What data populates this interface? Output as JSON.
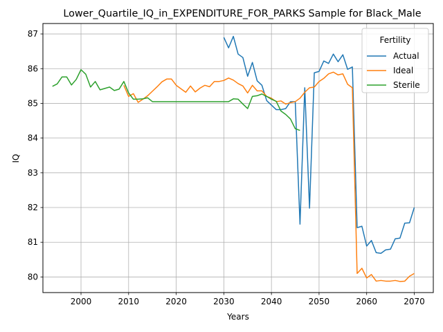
{
  "chart_data": {
    "type": "line",
    "title": "Lower_Quartile_IQ_in_EXPENDITURE_FOR_PARKS Sample for Black_Male",
    "xlabel": "Years",
    "ylabel": "IQ",
    "xlim": [
      1992,
      2074
    ],
    "ylim": [
      79.55,
      87.3
    ],
    "x_ticks": [
      2000,
      2010,
      2020,
      2030,
      2040,
      2050,
      2060,
      2070
    ],
    "y_ticks": [
      80,
      81,
      82,
      83,
      84,
      85,
      86,
      87
    ],
    "grid": true,
    "legend": {
      "title": "Fertility",
      "position": "top-right"
    },
    "series": [
      {
        "name": "Actual",
        "color": "#1f77b4",
        "x": [
          2030,
          2031,
          2032,
          2033,
          2034,
          2035,
          2036,
          2037,
          2038,
          2039,
          2040,
          2041,
          2042,
          2043,
          2044,
          2045,
          2046,
          2047,
          2048,
          2049,
          2050,
          2051,
          2052,
          2053,
          2054,
          2055,
          2056,
          2057,
          2058,
          2059,
          2060,
          2061,
          2062,
          2063,
          2064,
          2065,
          2066,
          2067,
          2068,
          2069,
          2070
        ],
        "values": [
          86.9,
          86.6,
          86.93,
          86.42,
          86.32,
          85.78,
          86.18,
          85.65,
          85.52,
          85.08,
          84.95,
          84.82,
          84.82,
          84.85,
          85.05,
          85.05,
          81.52,
          85.45,
          81.98,
          85.88,
          85.92,
          86.22,
          86.15,
          86.42,
          86.2,
          86.4,
          85.98,
          86.05,
          81.42,
          81.46,
          80.89,
          81.05,
          80.7,
          80.68,
          80.78,
          80.8,
          81.1,
          81.12,
          81.55,
          81.56,
          82.0
        ]
      },
      {
        "name": "Ideal",
        "color": "#ff7f0e",
        "x": [
          2009,
          2010,
          2011,
          2012,
          2013,
          2014,
          2015,
          2016,
          2017,
          2018,
          2019,
          2020,
          2021,
          2022,
          2023,
          2024,
          2025,
          2026,
          2027,
          2028,
          2029,
          2030,
          2031,
          2032,
          2033,
          2034,
          2035,
          2036,
          2037,
          2038,
          2039,
          2040,
          2041,
          2042,
          2043,
          2044,
          2045,
          2046,
          2047,
          2048,
          2049,
          2050,
          2051,
          2052,
          2053,
          2054,
          2055,
          2056,
          2057,
          2058,
          2059,
          2060,
          2061,
          2062,
          2063,
          2064,
          2065,
          2066,
          2067,
          2068,
          2069,
          2070
        ],
        "values": [
          85.52,
          85.2,
          85.28,
          85.03,
          85.12,
          85.22,
          85.35,
          85.48,
          85.62,
          85.7,
          85.7,
          85.52,
          85.42,
          85.32,
          85.5,
          85.33,
          85.44,
          85.52,
          85.48,
          85.63,
          85.63,
          85.66,
          85.73,
          85.67,
          85.57,
          85.5,
          85.3,
          85.52,
          85.36,
          85.36,
          85.2,
          85.15,
          85.05,
          85.07,
          84.98,
          85.02,
          85.05,
          85.15,
          85.32,
          85.45,
          85.47,
          85.63,
          85.72,
          85.85,
          85.9,
          85.82,
          85.85,
          85.55,
          85.45,
          80.1,
          80.25,
          79.97,
          80.07,
          79.88,
          79.9,
          79.88,
          79.88,
          79.9,
          79.87,
          79.88,
          80.02,
          80.1
        ]
      },
      {
        "name": "Sterile",
        "color": "#2ca02c",
        "x": [
          1994,
          1995,
          1996,
          1997,
          1998,
          1999,
          2000,
          2001,
          2002,
          2003,
          2004,
          2005,
          2006,
          2007,
          2008,
          2009,
          2010,
          2011,
          2012,
          2013,
          2014,
          2015,
          2016,
          2017,
          2018,
          2019,
          2020,
          2021,
          2022,
          2023,
          2024,
          2025,
          2026,
          2027,
          2028,
          2029,
          2030,
          2031,
          2032,
          2033,
          2034,
          2035,
          2036,
          2037,
          2038,
          2039,
          2040,
          2041,
          2042,
          2043,
          2044,
          2045,
          2046
        ],
        "values": [
          85.49,
          85.56,
          85.76,
          85.76,
          85.53,
          85.69,
          85.97,
          85.84,
          85.47,
          85.63,
          85.39,
          85.43,
          85.47,
          85.37,
          85.41,
          85.63,
          85.3,
          85.12,
          85.12,
          85.13,
          85.16,
          85.05,
          85.05,
          85.05,
          85.05,
          85.05,
          85.05,
          85.05,
          85.05,
          85.05,
          85.05,
          85.05,
          85.05,
          85.05,
          85.05,
          85.05,
          85.05,
          85.05,
          85.13,
          85.12,
          84.98,
          84.85,
          85.2,
          85.22,
          85.27,
          85.2,
          85.12,
          85.06,
          84.78,
          84.68,
          84.55,
          84.27,
          84.22
        ]
      }
    ]
  }
}
